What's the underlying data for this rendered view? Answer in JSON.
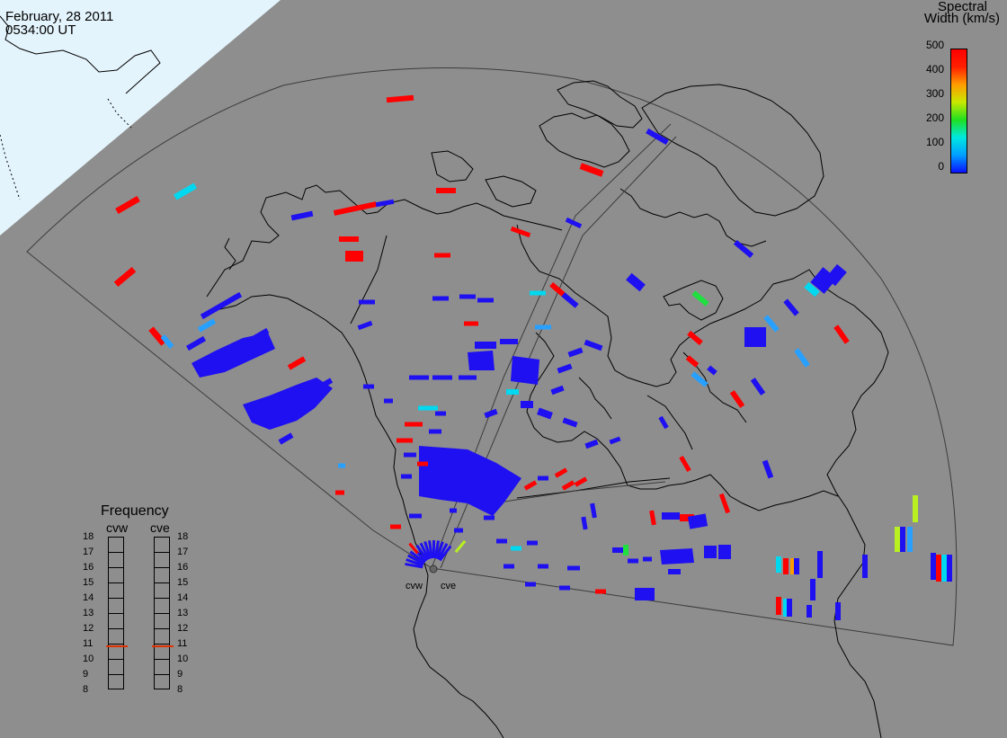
{
  "header": {
    "date": "February, 28 2011",
    "time": "0534:00 UT"
  },
  "colorbar": {
    "title_line1": "Spectral",
    "title_line2": "Width (km/s)",
    "ticks": [
      "500",
      "400",
      "300",
      "200",
      "100",
      "0"
    ],
    "gradient": [
      "#0a10ff",
      "#00a0ff",
      "#00e8e0",
      "#20e020",
      "#c8e800",
      "#ff9c00",
      "#ff2000",
      "#ff0000"
    ]
  },
  "frequency_panel": {
    "title": "Frequency",
    "radars": [
      "cvw",
      "cve"
    ],
    "ticks": [
      "18",
      "17",
      "16",
      "15",
      "14",
      "13",
      "12",
      "11",
      "10",
      "9",
      "8"
    ],
    "cvw_freq_mhz": 10.9,
    "cve_freq_mhz": 10.9,
    "indicator_color": "#e03000"
  },
  "stations": {
    "west": "cvw",
    "east": "cve"
  },
  "colors": {
    "background": "#8e8e8e",
    "daylight": "#e4f4fc",
    "coastline": "#000000",
    "scatter_blue": "#1e10f0",
    "scatter_red": "#ff0000"
  }
}
